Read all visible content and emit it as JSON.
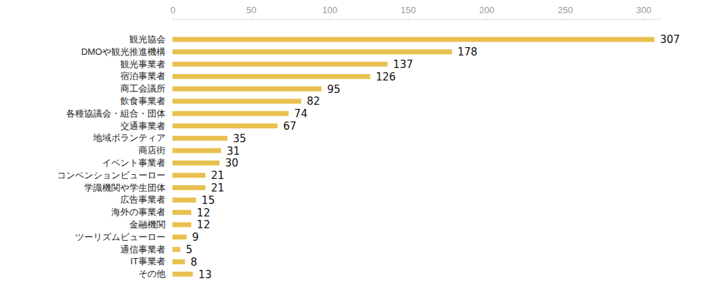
{
  "chart_data": {
    "type": "bar",
    "orientation": "horizontal",
    "categories": [
      "観光協会",
      "DMOや観光推進機構",
      "観光事業者",
      "宿泊事業者",
      "商工会議所",
      "飲食事業者",
      "各種協議会・組合・団体",
      "交通事業者",
      "地域ボランティア",
      "商店街",
      "イベント事業者",
      "コンベンションビューロー",
      "学識機関や学生団体",
      "広告事業者",
      "海外の事業者",
      "金融機関",
      "ツーリズムビューロー",
      "通信事業者",
      "IT事業者",
      "その他"
    ],
    "values": [
      307,
      178,
      137,
      126,
      95,
      82,
      74,
      67,
      35,
      31,
      30,
      21,
      21,
      15,
      12,
      12,
      9,
      5,
      8,
      13
    ],
    "color": "#e9c04f",
    "xlim": [
      0,
      310
    ],
    "xticks": [
      0,
      50,
      100,
      150,
      200,
      250,
      300
    ],
    "grid": false,
    "data_labels": true
  }
}
